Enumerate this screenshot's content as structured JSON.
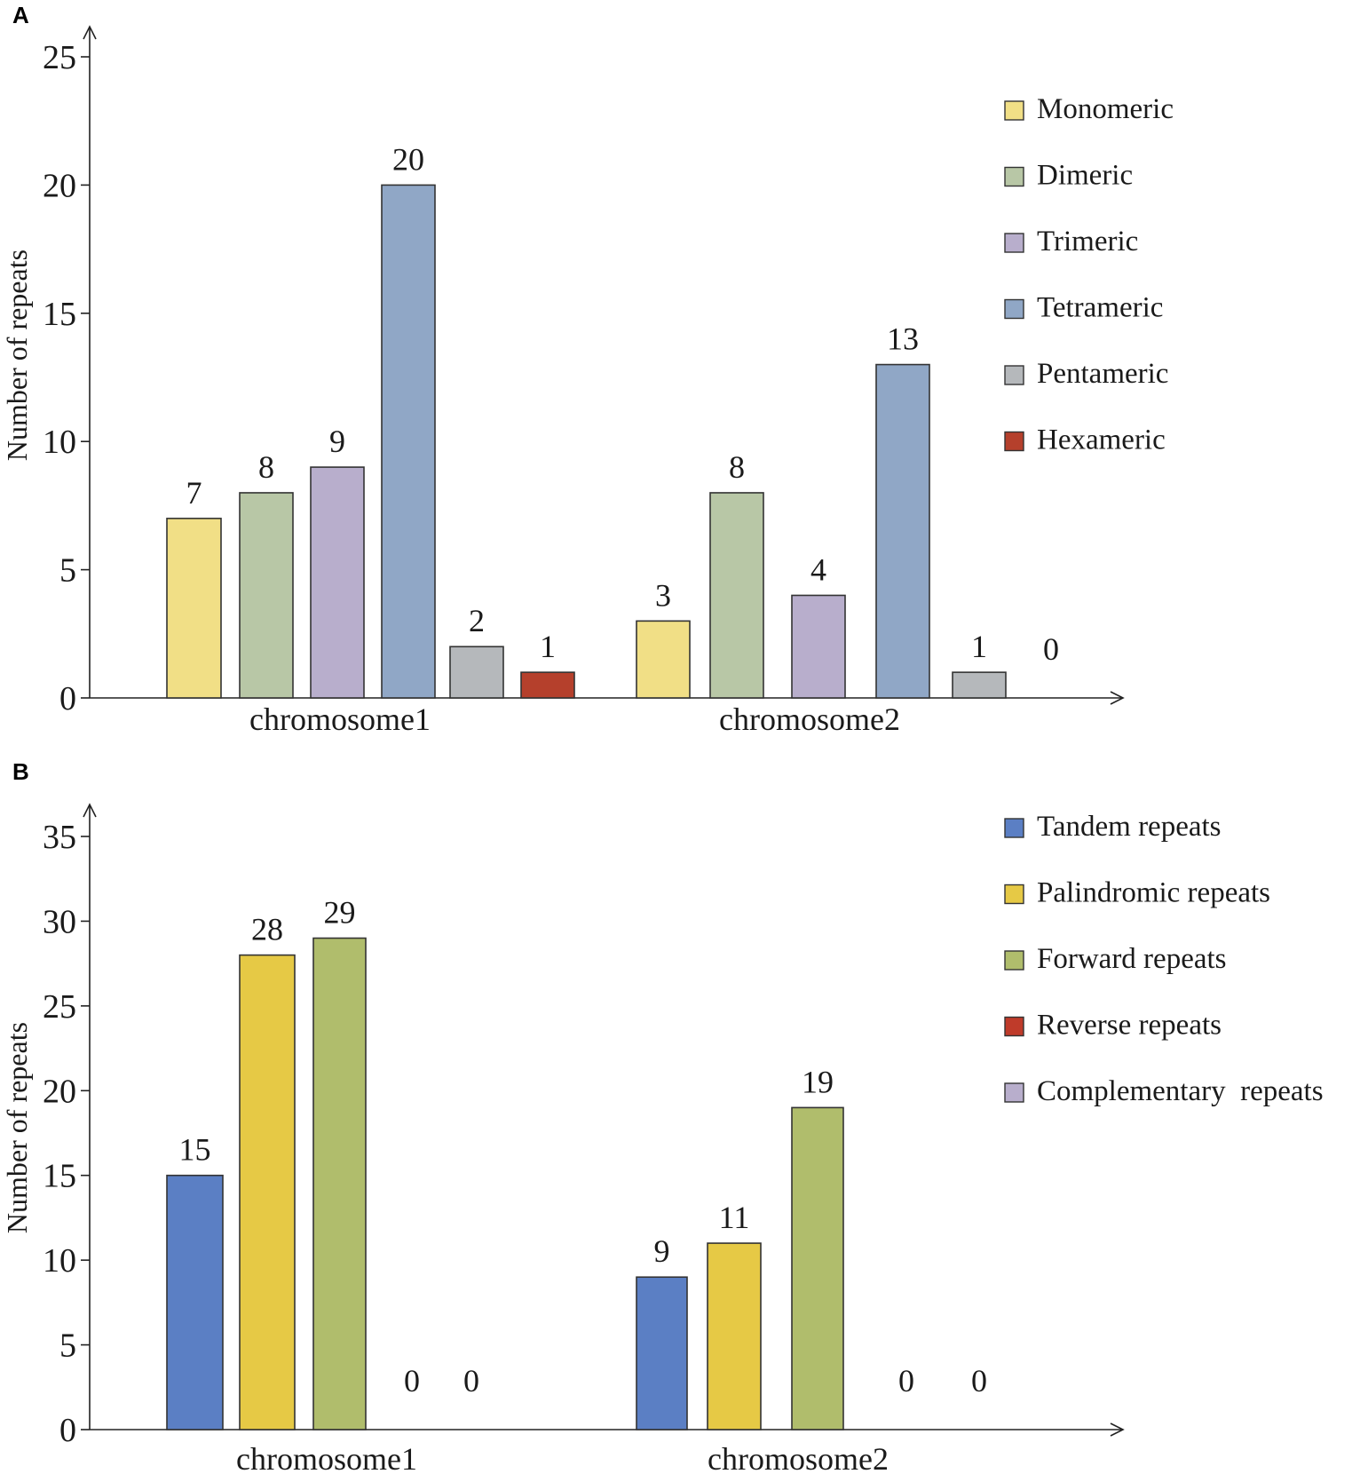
{
  "chart_data": [
    {
      "panel": "A",
      "type": "bar",
      "ylabel": "Number of repeats",
      "ylim": [
        0,
        25
      ],
      "yticks": [
        0,
        5,
        10,
        15,
        20,
        25
      ],
      "categories": [
        "chromosome1",
        "chromosome2"
      ],
      "series": [
        {
          "name": "Monomeric",
          "color": "#f1df86",
          "values": [
            7,
            3
          ]
        },
        {
          "name": "Dimeric",
          "color": "#b8c7a6",
          "values": [
            8,
            8
          ]
        },
        {
          "name": "Trimeric",
          "color": "#b8aecc",
          "values": [
            9,
            4
          ]
        },
        {
          "name": "Tetrameric",
          "color": "#90a7c6",
          "values": [
            20,
            13
          ]
        },
        {
          "name": "Pentameric",
          "color": "#b5b8bb",
          "values": [
            2,
            1
          ]
        },
        {
          "name": "Hexameric",
          "color": "#b5402c",
          "values": [
            1,
            0
          ]
        }
      ],
      "legend_position": "top-right"
    },
    {
      "panel": "B",
      "type": "bar",
      "ylabel": "Number of repeats",
      "ylim": [
        0,
        35
      ],
      "yticks": [
        0,
        5,
        10,
        15,
        20,
        25,
        30,
        35
      ],
      "categories": [
        "chromosome1",
        "chromosome2"
      ],
      "series": [
        {
          "name": "Tandem repeats",
          "color": "#5b7fc4",
          "values": [
            15,
            9
          ]
        },
        {
          "name": "Palindromic repeats",
          "color": "#e6c945",
          "values": [
            28,
            11
          ]
        },
        {
          "name": "Forward repeats",
          "color": "#b0bd6c",
          "values": [
            29,
            19
          ]
        },
        {
          "name": "Reverse repeats",
          "color": "#bf3b2a",
          "values": [
            0,
            0
          ]
        },
        {
          "name": "Complementary  repeats",
          "color": "#b8aecc",
          "values": [
            0,
            0
          ]
        }
      ],
      "legend_position": "top-right"
    }
  ]
}
